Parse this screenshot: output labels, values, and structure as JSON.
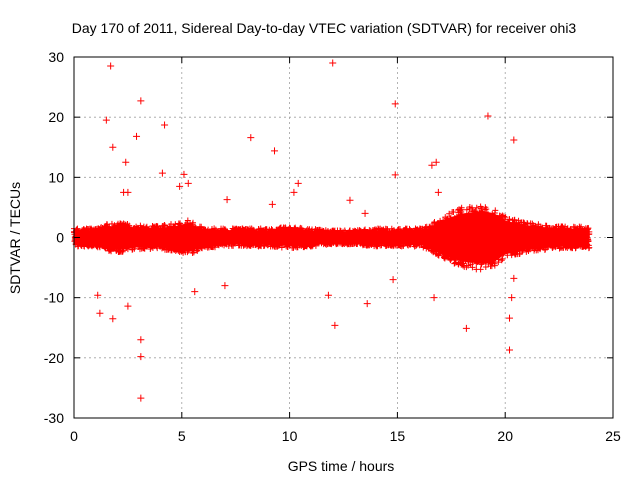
{
  "chart_data": {
    "type": "scatter",
    "title": "Day 170 of 2011, Sidereal Day-to-day VTEC variation (SDTVAR) for receiver ohi3",
    "xlabel": "GPS time / hours",
    "ylabel": "SDTVAR / TECUs",
    "xlim": [
      0,
      25
    ],
    "ylim": [
      -30,
      30
    ],
    "xticks": [
      0,
      5,
      10,
      15,
      20,
      25
    ],
    "yticks": [
      -30,
      -20,
      -10,
      0,
      10,
      20,
      30
    ],
    "grid": true,
    "marker": "+",
    "series": [
      {
        "name": "SDTVAR",
        "color": "#ff0000",
        "dense_band": {
          "x_range": [
            0,
            23.9
          ],
          "step_hours": 0.02,
          "half_width_profile": [
            [
              0,
              1.5
            ],
            [
              1,
              1.5
            ],
            [
              1.5,
              2.2
            ],
            [
              2,
              2.5
            ],
            [
              3,
              2.0
            ],
            [
              4,
              2.0
            ],
            [
              5,
              2.5
            ],
            [
              5.3,
              3.0
            ],
            [
              6,
              1.8
            ],
            [
              7,
              1.5
            ],
            [
              8,
              1.5
            ],
            [
              9,
              1.5
            ],
            [
              10,
              1.8
            ],
            [
              11,
              1.5
            ],
            [
              12,
              1.2
            ],
            [
              13,
              1.2
            ],
            [
              14,
              1.5
            ],
            [
              15,
              1.5
            ],
            [
              16,
              1.5
            ],
            [
              16.5,
              2.0
            ],
            [
              17,
              3.5
            ],
            [
              18,
              5.0
            ],
            [
              19,
              5.5
            ],
            [
              19.5,
              5.0
            ],
            [
              20,
              3.5
            ],
            [
              21,
              2.5
            ],
            [
              22,
              2.0
            ],
            [
              23,
              1.8
            ],
            [
              23.9,
              1.8
            ]
          ]
        },
        "x": [
          1.7,
          12.0,
          1.5,
          3.1,
          4.2,
          8.2,
          9.3,
          19.2,
          20.4,
          14.9,
          14.9,
          16.8,
          2.9,
          1.8,
          3.1,
          3.1,
          3.1,
          2.4,
          2.5,
          1.1,
          1.2,
          1.8,
          2.5,
          11.8,
          12.1,
          13.6,
          18.2,
          20.2,
          20.2,
          20.3,
          20.4,
          5.6,
          14.8,
          16.7,
          16.9,
          7.1,
          5.1,
          4.9,
          10.4,
          10.2,
          5.3,
          4.1,
          12.8,
          2.3,
          7.0,
          9.2,
          16.6,
          13.5
        ],
        "y": [
          28.5,
          29.0,
          19.5,
          22.7,
          18.7,
          16.6,
          14.4,
          20.2,
          16.2,
          22.2,
          10.4,
          12.5,
          16.8,
          15.0,
          -17.0,
          -19.8,
          -26.7,
          12.5,
          7.5,
          -9.6,
          -12.6,
          -13.5,
          -11.4,
          -9.6,
          -14.6,
          -11.0,
          -15.1,
          -13.4,
          -18.7,
          -10.0,
          -6.8,
          -9.0,
          -7.0,
          -10.0,
          7.5,
          6.3,
          10.5,
          8.5,
          9.0,
          7.5,
          9.0,
          10.7,
          6.2,
          7.5,
          -8.0,
          5.5,
          12.0,
          4.0
        ]
      }
    ]
  }
}
